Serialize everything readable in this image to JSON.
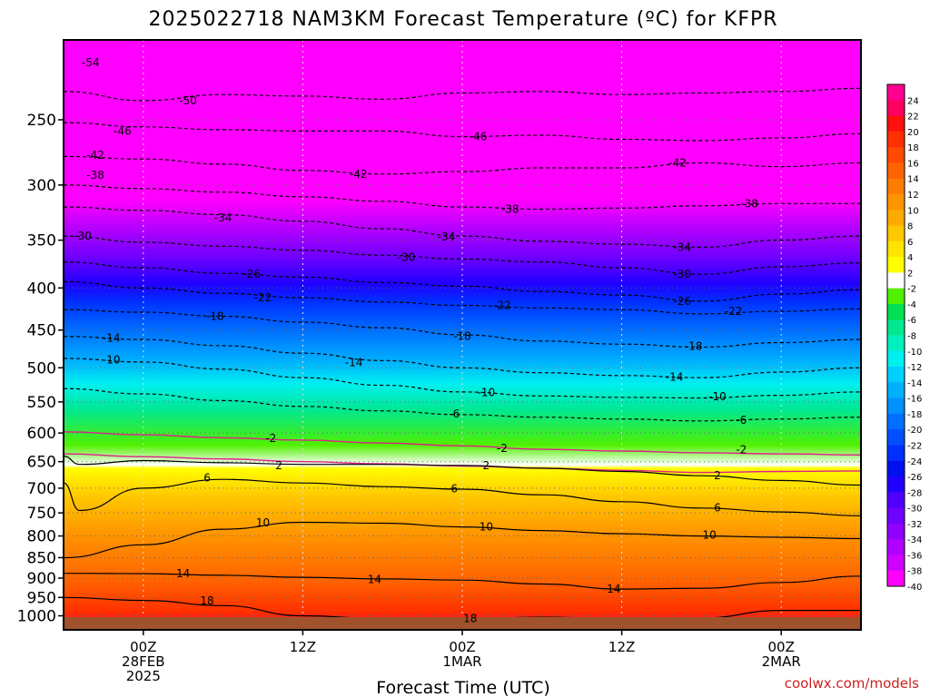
{
  "chart_data": {
    "type": "heatmap",
    "title": "2025022718 NAM3KM Forecast Temperature (ºC) for KFPR",
    "xlabel": "Forecast Time (UTC)",
    "ylabel": "",
    "credit": "coolwx.com/models",
    "y_scale": "log-pressure",
    "ylim": [
      1040,
      200
    ],
    "y_ticks": [
      250,
      300,
      350,
      400,
      450,
      500,
      550,
      600,
      650,
      700,
      750,
      800,
      850,
      900,
      950,
      1000
    ],
    "x_range_hours": [
      -5,
      45
    ],
    "x_ticks": [
      {
        "hour": 0,
        "lines": [
          "00Z",
          "28FEB",
          "2025"
        ]
      },
      {
        "hour": 10,
        "lines": [
          "12Z"
        ]
      },
      {
        "hour": 20,
        "lines": [
          "00Z",
          "1MAR"
        ]
      },
      {
        "hour": 30,
        "lines": [
          "12Z"
        ]
      },
      {
        "hour": 40,
        "lines": [
          "00Z",
          "2MAR"
        ]
      }
    ],
    "grid": true,
    "colorbar": {
      "position": "right",
      "labels": [
        "24",
        "22",
        "20",
        "18",
        "16",
        "14",
        "12",
        "10",
        "8",
        "6",
        "4",
        "2",
        "-2",
        "-4",
        "-6",
        "-8",
        "-10",
        "-12",
        "-14",
        "-16",
        "-18",
        "-20",
        "-22",
        "-24",
        "-26",
        "-28",
        "-30",
        "-32",
        "-34",
        "-36",
        "-38",
        "-40"
      ],
      "colors": [
        "#ff0090",
        "#ff0060",
        "#ff1010",
        "#ff3000",
        "#ff4a00",
        "#ff6400",
        "#ff7c00",
        "#ff9400",
        "#ffaa00",
        "#ffc800",
        "#ffe400",
        "#ffff00",
        "#ffffff",
        "#50f000",
        "#00e050",
        "#00e890",
        "#00f0c0",
        "#00f0f0",
        "#00d0ff",
        "#00b0ff",
        "#0090ff",
        "#0070ff",
        "#0050ff",
        "#0030ff",
        "#0010f0",
        "#2000ff",
        "#5000ff",
        "#7000ff",
        "#9000ff",
        "#b000ff",
        "#d000ff",
        "#ff00ff"
      ]
    },
    "contour_labels": [
      {
        "text": "-54",
        "hour": -3.3,
        "p": 213
      },
      {
        "text": "-50",
        "hour": 2.8,
        "p": 237
      },
      {
        "text": "-46",
        "hour": -1.3,
        "p": 258
      },
      {
        "text": "-46",
        "hour": 21.0,
        "p": 262
      },
      {
        "text": "-42",
        "hour": -3.0,
        "p": 276
      },
      {
        "text": "-42",
        "hour": 13.5,
        "p": 291
      },
      {
        "text": "-42",
        "hour": 33.5,
        "p": 282
      },
      {
        "text": "-38",
        "hour": -3.0,
        "p": 292
      },
      {
        "text": "-38",
        "hour": 23.0,
        "p": 321
      },
      {
        "text": "-38",
        "hour": 38.0,
        "p": 316
      },
      {
        "text": "-34",
        "hour": 5.0,
        "p": 329
      },
      {
        "text": "-34",
        "hour": 19.0,
        "p": 347
      },
      {
        "text": "-34",
        "hour": 33.8,
        "p": 357
      },
      {
        "text": "-30",
        "hour": -3.8,
        "p": 346
      },
      {
        "text": "-30",
        "hour": 16.5,
        "p": 367
      },
      {
        "text": "-30",
        "hour": 33.8,
        "p": 385
      },
      {
        "text": "-26",
        "hour": 6.8,
        "p": 385
      },
      {
        "text": "-26",
        "hour": 33.8,
        "p": 415
      },
      {
        "text": "-22",
        "hour": 7.5,
        "p": 411
      },
      {
        "text": "-22",
        "hour": 22.5,
        "p": 420
      },
      {
        "text": "-22",
        "hour": 37.0,
        "p": 427
      },
      {
        "text": "-18",
        "hour": 4.5,
        "p": 433
      },
      {
        "text": "-18",
        "hour": 20.0,
        "p": 458
      },
      {
        "text": "-18",
        "hour": 34.5,
        "p": 471
      },
      {
        "text": "-14",
        "hour": -2.0,
        "p": 460
      },
      {
        "text": "-14",
        "hour": 13.2,
        "p": 493
      },
      {
        "text": "-14",
        "hour": 33.3,
        "p": 513
      },
      {
        "text": "-10",
        "hour": -2.0,
        "p": 489
      },
      {
        "text": "-10",
        "hour": 21.5,
        "p": 536
      },
      {
        "text": "-10",
        "hour": 36.0,
        "p": 542
      },
      {
        "text": "-6",
        "hour": 19.5,
        "p": 569
      },
      {
        "text": "-6",
        "hour": 37.5,
        "p": 579
      },
      {
        "text": "-2",
        "hour": 8.0,
        "p": 609
      },
      {
        "text": "-2",
        "hour": 22.5,
        "p": 626
      },
      {
        "text": "-2",
        "hour": 37.5,
        "p": 629
      },
      {
        "text": "2",
        "hour": 8.5,
        "p": 657
      },
      {
        "text": "2",
        "hour": 21.5,
        "p": 657
      },
      {
        "text": "2",
        "hour": 36.0,
        "p": 676
      },
      {
        "text": "6",
        "hour": 4.0,
        "p": 680
      },
      {
        "text": "6",
        "hour": 19.5,
        "p": 701
      },
      {
        "text": "6",
        "hour": 36.0,
        "p": 739
      },
      {
        "text": "10",
        "hour": 7.5,
        "p": 771
      },
      {
        "text": "10",
        "hour": 21.5,
        "p": 780
      },
      {
        "text": "10",
        "hour": 35.5,
        "p": 798
      },
      {
        "text": "14",
        "hour": 2.5,
        "p": 889
      },
      {
        "text": "14",
        "hour": 14.5,
        "p": 903
      },
      {
        "text": "14",
        "hour": 29.5,
        "p": 928
      },
      {
        "text": "18",
        "hour": 4.0,
        "p": 959
      },
      {
        "text": "18",
        "hour": 20.5,
        "p": 1008
      }
    ],
    "contour_lines": [
      {
        "value": -50,
        "dashed": true,
        "hour": [
          -5,
          0,
          5,
          10,
          15,
          20,
          25,
          30,
          35,
          40,
          45
        ],
        "p": [
          231,
          237,
          233,
          234,
          236,
          232,
          231,
          233,
          232,
          231,
          229
        ]
      },
      {
        "value": -46,
        "dashed": true,
        "hour": [
          -5,
          0,
          5,
          10,
          15,
          20,
          25,
          30,
          35,
          40,
          45
        ],
        "p": [
          252,
          255,
          257,
          258,
          258,
          262,
          261,
          264,
          265,
          263,
          260
        ]
      },
      {
        "value": -42,
        "dashed": true,
        "hour": [
          -5,
          0,
          5,
          10,
          15,
          20,
          25,
          30,
          35,
          40,
          45
        ],
        "p": [
          277,
          279,
          283,
          288,
          291,
          289,
          286,
          286,
          282,
          285,
          282
        ]
      },
      {
        "value": -38,
        "dashed": true,
        "hour": [
          -5,
          0,
          5,
          10,
          15,
          20,
          25,
          30,
          35,
          40,
          45
        ],
        "p": [
          300,
          303,
          306,
          310,
          314,
          319,
          321,
          320,
          318,
          316,
          316
        ]
      },
      {
        "value": -34,
        "dashed": true,
        "hour": [
          -5,
          0,
          5,
          10,
          15,
          20,
          25,
          30,
          35,
          40,
          45
        ],
        "p": [
          319,
          322,
          326,
          332,
          339,
          346,
          351,
          354,
          357,
          350,
          346
        ]
      },
      {
        "value": -30,
        "dashed": true,
        "hour": [
          -5,
          0,
          5,
          10,
          15,
          20,
          25,
          30,
          35,
          40,
          45
        ],
        "p": [
          346,
          352,
          356,
          360,
          365,
          369,
          372,
          378,
          385,
          377,
          373
        ]
      },
      {
        "value": -26,
        "dashed": true,
        "hour": [
          -5,
          0,
          5,
          10,
          15,
          20,
          25,
          30,
          35,
          40,
          45
        ],
        "p": [
          372,
          378,
          384,
          388,
          394,
          398,
          404,
          408,
          415,
          407,
          402
        ]
      },
      {
        "value": -22,
        "dashed": true,
        "hour": [
          -5,
          0,
          5,
          10,
          15,
          20,
          25,
          30,
          35,
          40,
          45
        ],
        "p": [
          393,
          400,
          406,
          411,
          416,
          420,
          423,
          425,
          430,
          427,
          424
        ]
      },
      {
        "value": -18,
        "dashed": true,
        "hour": [
          -5,
          0,
          5,
          10,
          15,
          20,
          25,
          30,
          35,
          40,
          45
        ],
        "p": [
          425,
          428,
          433,
          440,
          447,
          456,
          464,
          468,
          472,
          466,
          462
        ]
      },
      {
        "value": -14,
        "dashed": true,
        "hour": [
          -5,
          0,
          5,
          10,
          15,
          20,
          25,
          30,
          35,
          40,
          45
        ],
        "p": [
          458,
          462,
          470,
          480,
          490,
          500,
          507,
          511,
          514,
          506,
          500
        ]
      },
      {
        "value": -10,
        "dashed": true,
        "hour": [
          -5,
          0,
          5,
          10,
          15,
          20,
          25,
          30,
          35,
          40,
          45
        ],
        "p": [
          487,
          492,
          502,
          514,
          525,
          535,
          541,
          543,
          544,
          540,
          535
        ]
      },
      {
        "value": -6,
        "dashed": true,
        "hour": [
          -5,
          0,
          5,
          10,
          15,
          20,
          25,
          30,
          35,
          40,
          45
        ],
        "p": [
          530,
          538,
          548,
          557,
          564,
          570,
          574,
          577,
          580,
          577,
          574
        ]
      },
      {
        "value": -2,
        "dashed": false,
        "pink": true,
        "hour": [
          -5,
          0,
          5,
          10,
          15,
          20,
          25,
          30,
          35,
          40,
          45
        ],
        "p": [
          598,
          603,
          608,
          612,
          617,
          622,
          628,
          631,
          634,
          636,
          638
        ]
      },
      {
        "value": 0,
        "dashed": false,
        "pink": true,
        "hour": [
          -5,
          0,
          5,
          10,
          15,
          20,
          25,
          30,
          35,
          40,
          45
        ],
        "p": [
          636,
          641,
          645,
          650,
          654,
          658,
          662,
          666,
          670,
          668,
          667
        ]
      },
      {
        "value": 2,
        "dashed": false,
        "hour": [
          -5,
          -4,
          0,
          5,
          10,
          15,
          20,
          25,
          30,
          35,
          40,
          45
        ],
        "p": [
          640,
          655,
          648,
          652,
          655,
          655,
          657,
          662,
          668,
          676,
          685,
          694
        ]
      },
      {
        "value": 6,
        "dashed": false,
        "hour": [
          -5,
          -4,
          0,
          5,
          10,
          15,
          20,
          25,
          30,
          35,
          40,
          45
        ],
        "p": [
          690,
          745,
          700,
          683,
          690,
          697,
          702,
          713,
          727,
          740,
          748,
          756
        ]
      },
      {
        "value": 10,
        "dashed": false,
        "hour": [
          -5,
          0,
          5,
          10,
          15,
          20,
          25,
          30,
          35,
          40,
          45
        ],
        "p": [
          850,
          820,
          785,
          770,
          772,
          780,
          788,
          795,
          800,
          803,
          806
        ]
      },
      {
        "value": 14,
        "dashed": false,
        "hour": [
          -5,
          0,
          5,
          10,
          15,
          20,
          25,
          30,
          35,
          40,
          45
        ],
        "p": [
          888,
          889,
          893,
          898,
          902,
          905,
          915,
          928,
          926,
          911,
          895
        ]
      },
      {
        "value": 18,
        "dashed": false,
        "hour": [
          -5,
          0,
          5,
          10,
          15,
          20,
          25,
          30,
          35,
          40,
          45
        ],
        "p": [
          950,
          958,
          972,
          1000,
          1008,
          1008,
          1004,
          1008,
          1006,
          985,
          985
        ]
      }
    ]
  }
}
